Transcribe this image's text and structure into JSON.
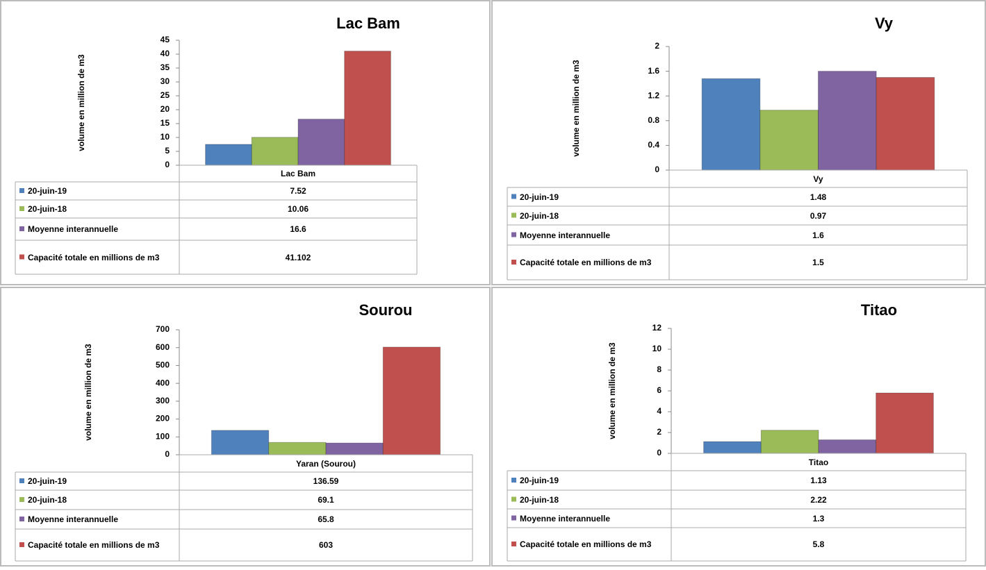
{
  "chart_data": [
    {
      "type": "bar",
      "title": "Lac Bam",
      "ylabel": "volume en million de m3",
      "categories": [
        "Lac Bam"
      ],
      "ylim": [
        0,
        45
      ],
      "yticks": [
        0,
        5,
        10,
        15,
        20,
        25,
        30,
        35,
        40,
        45
      ],
      "series": [
        {
          "name": "20-juin-19",
          "color": "#4f81bd",
          "values": [
            7.52
          ]
        },
        {
          "name": "20-juin-18",
          "color": "#9bbb59",
          "values": [
            10.06
          ]
        },
        {
          "name": "Moyenne interannuelle",
          "color": "#8064a2",
          "values": [
            16.6
          ]
        },
        {
          "name": "Capacité totale en millions de m3",
          "color": "#c0504d",
          "values": [
            41.102
          ]
        }
      ]
    },
    {
      "type": "bar",
      "title": "Vy",
      "ylabel": "volume en million de m3",
      "categories": [
        "Vy"
      ],
      "ylim": [
        0,
        2
      ],
      "yticks": [
        0,
        0.4,
        0.8,
        1.2,
        1.6,
        2
      ],
      "series": [
        {
          "name": "20-juin-19",
          "color": "#4f81bd",
          "values": [
            1.48
          ]
        },
        {
          "name": "20-juin-18",
          "color": "#9bbb59",
          "values": [
            0.97
          ]
        },
        {
          "name": "Moyenne interannuelle",
          "color": "#8064a2",
          "values": [
            1.6
          ]
        },
        {
          "name": "Capacité totale en millions de m3",
          "color": "#c0504d",
          "values": [
            1.5
          ]
        }
      ]
    },
    {
      "type": "bar",
      "title": "Sourou",
      "ylabel": "volume en million de m3",
      "categories": [
        "Yaran (Sourou)"
      ],
      "ylim": [
        0,
        700
      ],
      "yticks": [
        0,
        100,
        200,
        300,
        400,
        500,
        600,
        700
      ],
      "series": [
        {
          "name": "20-juin-19",
          "color": "#4f81bd",
          "values": [
            136.59
          ]
        },
        {
          "name": "20-juin-18",
          "color": "#9bbb59",
          "values": [
            69.1
          ]
        },
        {
          "name": "Moyenne interannuelle",
          "color": "#8064a2",
          "values": [
            65.8
          ]
        },
        {
          "name": "Capacité totale en millions de m3",
          "color": "#c0504d",
          "values": [
            603
          ]
        }
      ]
    },
    {
      "type": "bar",
      "title": "Titao",
      "ylabel": "volume en million de m3",
      "categories": [
        "Titao"
      ],
      "ylim": [
        0,
        12
      ],
      "yticks": [
        0,
        2,
        4,
        6,
        8,
        10,
        12
      ],
      "series": [
        {
          "name": "20-juin-19",
          "color": "#4f81bd",
          "values": [
            1.13
          ]
        },
        {
          "name": "20-juin-18",
          "color": "#9bbb59",
          "values": [
            2.22
          ]
        },
        {
          "name": "Moyenne interannuelle",
          "color": "#8064a2",
          "values": [
            1.3
          ]
        },
        {
          "name": "Capacité totale en millions de m3",
          "color": "#c0504d",
          "values": [
            5.8
          ]
        }
      ]
    }
  ]
}
